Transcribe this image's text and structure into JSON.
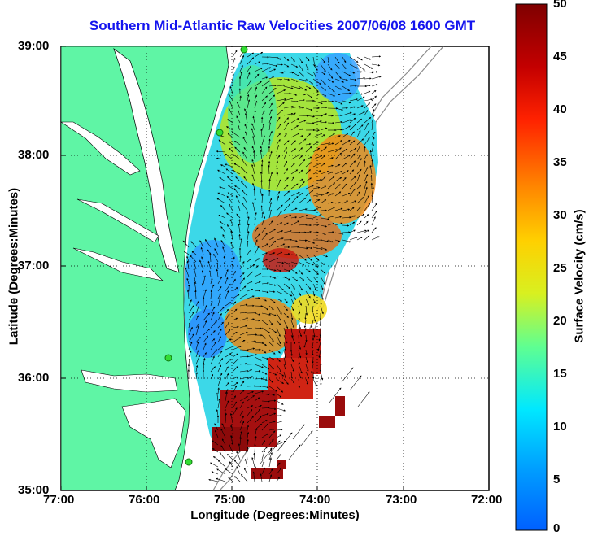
{
  "title": "Southern Mid-Atlantic Raw Velocities 2007/06/08 1600 GMT",
  "xlabel": "Longitude (Degrees:Minutes)",
  "ylabel": "Latitude (Degrees:Minutes)",
  "x_ticks": [
    "77:00",
    "76:00",
    "75:00",
    "74:00",
    "73:00",
    "72:00"
  ],
  "y_ticks": [
    "39:00",
    "38:00",
    "37:00",
    "36:00",
    "35:00"
  ],
  "colorbar": {
    "label": "Surface Velocity (cm/s)",
    "ticks": [
      "50",
      "45",
      "40",
      "35",
      "30",
      "25",
      "20",
      "15",
      "10",
      "5",
      "0"
    ],
    "range": [
      0,
      50
    ]
  },
  "colors": {
    "land": "#5ff5a5",
    "title": "#1414ee",
    "station": "#33dd33"
  },
  "grid": "dotted"
}
